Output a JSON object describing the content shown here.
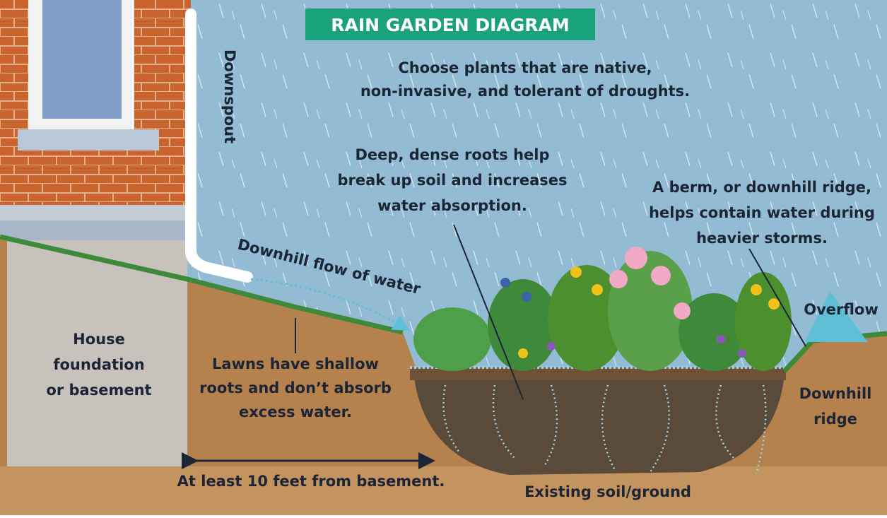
{
  "title": "RAIN GARDEN DIAGRAM",
  "labels": [
    {
      "lines": [
        "Choose plants that are native,",
        "non-invasive, and tolerant of droughts."
      ]
    },
    {
      "lines": [
        "Downspout"
      ]
    },
    {
      "lines": [
        "Deep, dense roots help",
        "break up soil and increases",
        "water absorption."
      ]
    },
    {
      "lines": [
        "A berm, or downhill ridge,",
        "helps contain water during",
        "heavier storms."
      ]
    },
    {
      "lines": [
        "Downhill flow of water"
      ]
    },
    {
      "lines": [
        "Overflow"
      ]
    },
    {
      "lines": [
        "House",
        "foundation",
        "or basement"
      ]
    },
    {
      "lines": [
        "Lawns have shallow",
        "roots and don’t absorb",
        "excess water."
      ]
    },
    {
      "lines": [
        "Downhill",
        "ridge"
      ]
    },
    {
      "lines": [
        "At least 10 feet from basement."
      ]
    },
    {
      "lines": [
        "Existing soil/ground"
      ]
    }
  ]
}
